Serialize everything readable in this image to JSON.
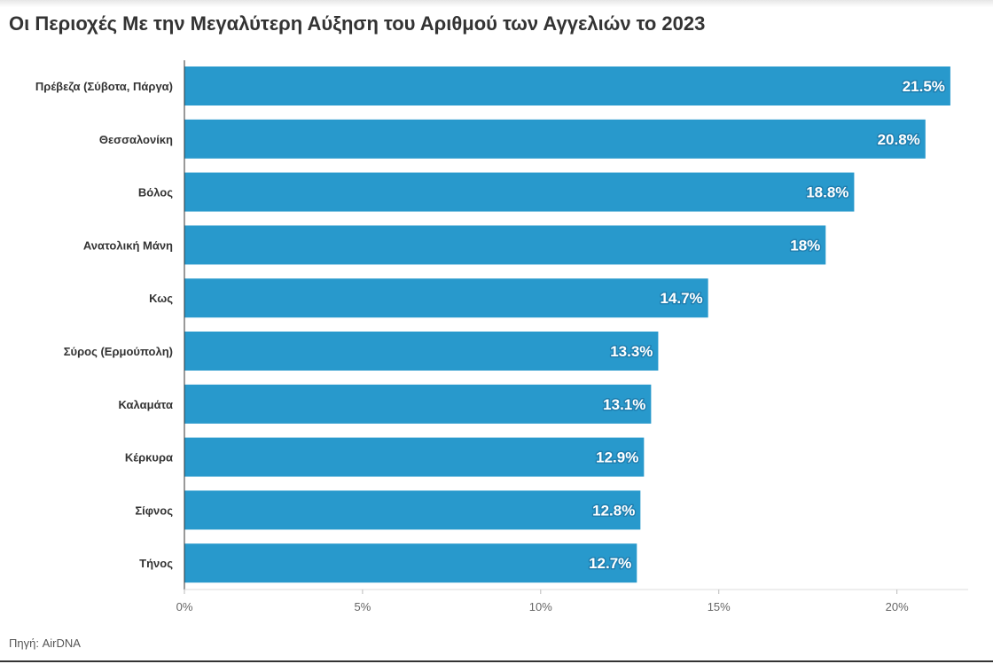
{
  "title": "Οι Περιοχές Με την Μεγαλύτερη Αύξηση του Αριθμού των Αγγελιών το 2023",
  "source": "Πηγή: AirDNA",
  "colors": {
    "bar": "#2899cc",
    "axis": "#333333",
    "grid": "#dddddd"
  },
  "chart_data": {
    "type": "bar",
    "orientation": "horizontal",
    "categories": [
      "Πρέβεζα (Σύβοτα, Πάργα)",
      "Θεσσαλονίκη",
      "Βόλος",
      "Ανατολική Μάνη",
      "Κως",
      "Σύρος (Ερμούπολη)",
      "Καλαμάτα",
      "Κέρκυρα",
      "Σίφνος",
      "Τήνος"
    ],
    "values": [
      21.5,
      20.8,
      18.8,
      18,
      14.7,
      13.3,
      13.1,
      12.9,
      12.8,
      12.7
    ],
    "value_labels": [
      "21.5%",
      "20.8%",
      "18.8%",
      "18%",
      "14.7%",
      "13.3%",
      "13.1%",
      "12.9%",
      "12.8%",
      "12.7%"
    ],
    "xlim": [
      0,
      22
    ],
    "x_ticks": [
      0,
      5,
      10,
      15,
      20
    ],
    "x_tick_labels": [
      "0%",
      "5%",
      "10%",
      "15%",
      "20%"
    ],
    "grid": false,
    "legend": "none"
  }
}
